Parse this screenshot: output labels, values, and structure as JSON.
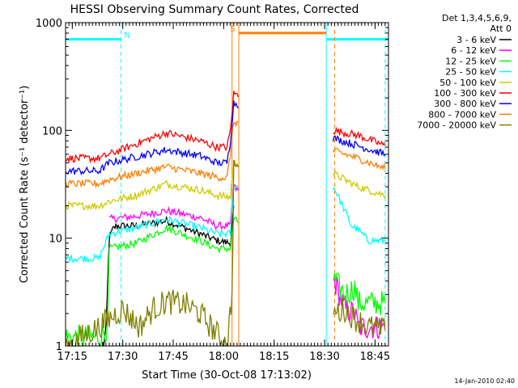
{
  "chart_data": {
    "type": "line",
    "title": "HESSI Observing Summary Count Rates, Corrected",
    "xlabel": "Start Time (30-Oct-08 17:13:02)",
    "ylabel": "Corrected Count Rate (s⁻¹ detector⁻¹)",
    "x_unit": "minutes since 17:13:02 UT",
    "yscale": "log",
    "xlim": [
      0,
      96
    ],
    "ylim": [
      1,
      1000
    ],
    "x_ticks": [
      {
        "x": 2,
        "label": "17:15"
      },
      {
        "x": 17,
        "label": "17:30"
      },
      {
        "x": 32,
        "label": "17:45"
      },
      {
        "x": 47,
        "label": "18:00"
      },
      {
        "x": 62,
        "label": "18:15"
      },
      {
        "x": 77,
        "label": "18:30"
      },
      {
        "x": 92,
        "label": "18:45"
      }
    ],
    "y_ticks": [
      {
        "y": 1,
        "label": "1"
      },
      {
        "y": 10,
        "label": "10"
      },
      {
        "y": 100,
        "label": "100"
      },
      {
        "y": 1000,
        "label": "1000"
      }
    ],
    "legend": {
      "header": [
        "Det 1,3,4,5,6,9,",
        "Att 0"
      ],
      "placement": "right"
    },
    "series": [
      {
        "name": "3 - 6 keV",
        "color": "#000000",
        "x": [
          11,
          12,
          13,
          14,
          15,
          21,
          30,
          40,
          45,
          49,
          50
        ],
        "y": [
          1,
          1.2,
          10,
          12,
          13,
          13,
          14.5,
          11,
          9.5,
          9,
          20
        ]
      },
      {
        "name": "6 - 12 keV",
        "color": "#ff00ff",
        "x": [
          13,
          21,
          30,
          40,
          45,
          49,
          50,
          80,
          83,
          86,
          87,
          95
        ],
        "y": [
          15,
          16,
          18,
          15.5,
          13,
          13,
          30,
          4,
          2.2,
          2,
          1.5,
          1.5
        ]
      },
      {
        "name": "12 - 25 keV",
        "color": "#00ff00",
        "x": [
          0,
          10,
          12.5,
          13,
          21,
          30,
          40,
          45,
          49,
          50,
          80,
          83,
          86,
          87,
          95
        ],
        "y": [
          1.2,
          1.2,
          1.5,
          8,
          9,
          12.5,
          9.5,
          8,
          8,
          15,
          4,
          3,
          3.5,
          2.5,
          2.5
        ]
      },
      {
        "name": "25 - 50 keV",
        "color": "#00ffff",
        "x": [
          0,
          10,
          13,
          21,
          30,
          40,
          45,
          49,
          50,
          79.5,
          81,
          83,
          85,
          87,
          90,
          95
        ],
        "y": [
          6.5,
          6.5,
          11,
          12.5,
          15,
          12.5,
          11,
          11,
          30,
          30,
          25,
          18,
          13,
          12,
          9.5,
          9.5
        ]
      },
      {
        "name": "50 - 100 keV",
        "color": "#cccc00",
        "x": [
          0,
          10,
          13,
          21,
          30,
          40,
          45,
          49,
          50,
          79.5,
          87,
          95
        ],
        "y": [
          20,
          20,
          22,
          25,
          32,
          28,
          25,
          24,
          50,
          40,
          30,
          25
        ]
      },
      {
        "name": "100 - 300 keV",
        "color": "#ff0000",
        "x": [
          0,
          10,
          13,
          21,
          30,
          40,
          45,
          48,
          49,
          50,
          79.5,
          87,
          95
        ],
        "y": [
          55,
          55,
          60,
          75,
          95,
          80,
          70,
          70,
          100,
          220,
          100,
          90,
          72
        ]
      },
      {
        "name": "300 - 800 keV",
        "color": "#0000ff",
        "x": [
          0,
          10,
          13,
          21,
          30,
          40,
          45,
          48,
          49,
          50,
          79.5,
          87,
          95
        ],
        "y": [
          42,
          42,
          50,
          57,
          66,
          58,
          50,
          50,
          80,
          180,
          85,
          72,
          60
        ]
      },
      {
        "name": "800 - 7000 keV",
        "color": "#ff7f00",
        "x": [
          0,
          10,
          13,
          21,
          30,
          40,
          45,
          48,
          49,
          50,
          79.5,
          87,
          95
        ],
        "y": [
          32,
          32,
          35,
          40,
          46,
          40,
          37,
          36,
          60,
          120,
          65,
          55,
          44
        ]
      },
      {
        "name": "7000 - 20000 keV",
        "color": "#808000",
        "x": [
          0,
          10,
          13,
          17,
          22,
          26,
          30,
          36,
          40,
          48,
          49.5,
          50,
          80,
          83,
          86,
          90,
          95
        ],
        "y": [
          1,
          1.5,
          1.8,
          2.2,
          1.5,
          2.2,
          2.6,
          2.4,
          2,
          1,
          3,
          50,
          2,
          2.2,
          1.8,
          1.5,
          1.4
        ]
      }
    ],
    "observing_flags": [
      {
        "label": "N",
        "color": "#00ffff",
        "y": 700,
        "segments": [
          [
            0,
            16.5
          ],
          [
            77.5,
            96
          ]
        ],
        "solid_boundaries": [
          0,
          77.5
        ],
        "dashed_boundaries": [
          16.5,
          95
        ]
      },
      {
        "label": "S",
        "color": "#ff7f00",
        "y": 800,
        "segments": [
          [
            51.5,
            77.5
          ]
        ],
        "solid_boundaries": [
          49.5,
          51.5
        ],
        "dashed_boundaries": [
          80
        ]
      }
    ],
    "grid": false
  },
  "timestamp": "14-Jan-2010 02:40"
}
